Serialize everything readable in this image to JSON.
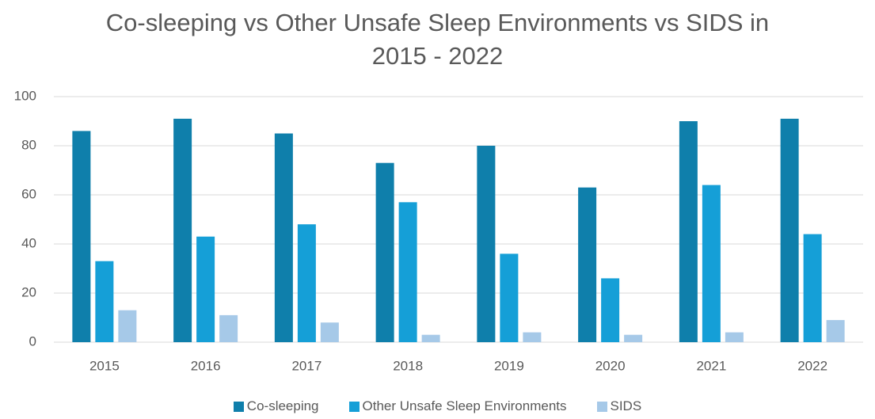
{
  "chart_data": {
    "type": "bar",
    "title": "Co-sleeping vs Other Unsafe Sleep Environments vs SIDS in 2015 - 2022",
    "categories": [
      "2015",
      "2016",
      "2017",
      "2018",
      "2019",
      "2020",
      "2021",
      "2022"
    ],
    "series": [
      {
        "name": "Co-sleeping",
        "color": "#0f7fab",
        "values": [
          86,
          91,
          85,
          73,
          80,
          63,
          90,
          91
        ]
      },
      {
        "name": "Other Unsafe Sleep Environments",
        "color": "#159fd7",
        "values": [
          33,
          43,
          48,
          57,
          36,
          26,
          64,
          44
        ]
      },
      {
        "name": "SIDS",
        "color": "#a6c9e8",
        "values": [
          13,
          11,
          8,
          3,
          4,
          3,
          4,
          9
        ]
      }
    ],
    "ylim": [
      0,
      100
    ],
    "yticks": [
      0,
      20,
      40,
      60,
      80,
      100
    ],
    "grid": true,
    "legend": "bottom"
  }
}
